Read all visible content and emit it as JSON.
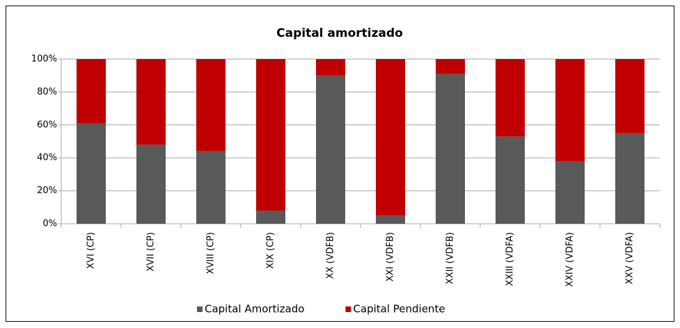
{
  "chart_data": {
    "type": "stacked_bar",
    "title": "Capital amortizado",
    "categories": [
      "XVI (CP)",
      "XVII (CP)",
      "XVIII (CP)",
      "XIX (CP)",
      "XX (VDFB)",
      "XXI (VDFB)",
      "XXII (VDFB)",
      "XXIII (VDFA)",
      "XXIV (VDFA)",
      "XXV (VDFA)"
    ],
    "series": [
      {
        "name": "Capital Amortizado",
        "color": "#595959",
        "values": [
          61,
          48,
          44,
          8,
          90,
          5,
          91,
          53,
          38,
          55
        ]
      },
      {
        "name": "Capital Pendiente",
        "color": "#c00000",
        "values": [
          39,
          52,
          56,
          92,
          10,
          95,
          9,
          47,
          62,
          45
        ]
      }
    ],
    "ylim": [
      0,
      100
    ],
    "yticks": [
      {
        "value": 0,
        "label": "0%"
      },
      {
        "value": 20,
        "label": "20%"
      },
      {
        "value": 40,
        "label": "40%"
      },
      {
        "value": 60,
        "label": "60%"
      },
      {
        "value": 80,
        "label": "80%"
      },
      {
        "value": 100,
        "label": "100%"
      }
    ],
    "grid": true,
    "legend": "bottom"
  }
}
